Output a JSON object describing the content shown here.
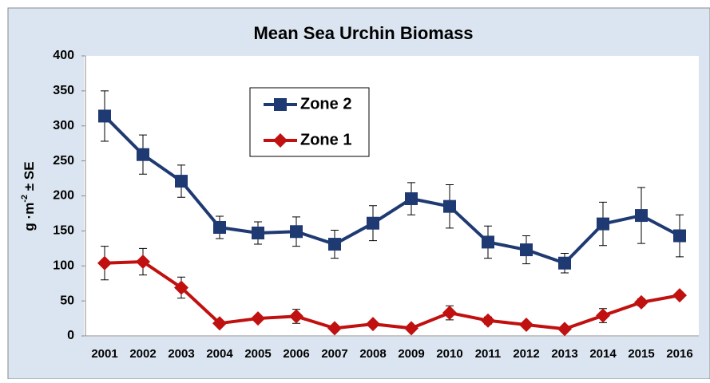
{
  "chart_data": {
    "type": "line",
    "title": "Mean Sea Urchin Biomass",
    "y_label": {
      "base": "g ·m",
      "superscript": "-2",
      "rest": " ± SE"
    },
    "categories": [
      "2001",
      "2002",
      "2003",
      "2004",
      "2005",
      "2006",
      "2007",
      "2008",
      "2009",
      "2010",
      "2011",
      "2012",
      "2013",
      "2014",
      "2015",
      "2016"
    ],
    "series": [
      {
        "name": "Zone 2",
        "color": "#1f3a73",
        "marker": "square",
        "values": [
          314,
          259,
          221,
          155,
          147,
          149,
          131,
          161,
          196,
          185,
          134,
          123,
          104,
          160,
          172,
          143
        ],
        "errors": [
          36,
          28,
          23,
          16,
          16,
          21,
          20,
          25,
          23,
          31,
          23,
          20,
          14,
          31,
          40,
          30
        ]
      },
      {
        "name": "Zone 1",
        "color": "#c0100f",
        "marker": "diamond",
        "values": [
          104,
          106,
          69,
          18,
          25,
          28,
          11,
          17,
          11,
          33,
          22,
          16,
          10,
          29,
          48,
          58
        ],
        "errors": [
          24,
          19,
          15,
          3,
          4,
          10,
          3,
          4,
          3,
          10,
          5,
          4,
          3,
          10,
          5,
          4
        ]
      }
    ],
    "ylim": [
      0,
      400
    ],
    "yticks": [
      0,
      50,
      100,
      150,
      200,
      250,
      300,
      350,
      400
    ],
    "grid": false
  }
}
